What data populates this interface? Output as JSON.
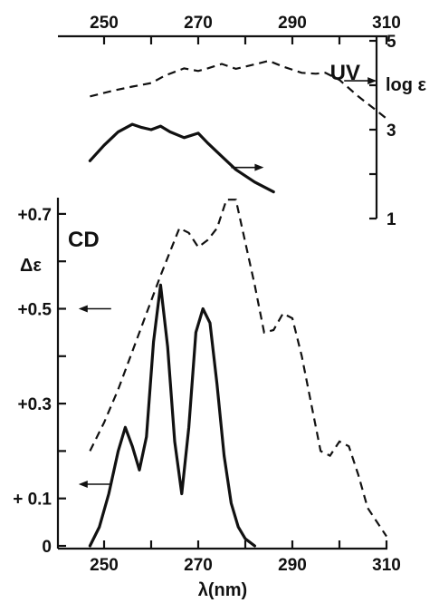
{
  "chart_data": [
    {
      "type": "line",
      "panel": "UV",
      "panel_label": "UV",
      "xlabel": "",
      "ylabel": "log ε",
      "xlim": [
        240,
        310
      ],
      "ylim": [
        1,
        5
      ],
      "x_ticks": [
        250,
        260,
        270,
        280,
        290,
        300,
        310
      ],
      "x_tick_labels": [
        "250",
        "270",
        "290",
        "310"
      ],
      "y_ticks": [
        1,
        2,
        3,
        4,
        5
      ],
      "y_tick_labels": [
        "1",
        "3",
        "5"
      ],
      "grid": false,
      "x_axis_position": "top",
      "y_axis_position": "right",
      "series": [
        {
          "style": "dashed",
          "x": [
            247,
            252,
            256,
            260,
            263,
            267,
            270,
            272,
            275,
            278,
            282,
            285,
            288,
            292,
            295,
            297,
            300,
            304,
            308,
            310
          ],
          "y": [
            3.75,
            3.88,
            3.97,
            4.05,
            4.22,
            4.38,
            4.32,
            4.38,
            4.48,
            4.37,
            4.47,
            4.55,
            4.42,
            4.28,
            4.26,
            4.28,
            4.12,
            3.75,
            3.42,
            3.25
          ]
        },
        {
          "style": "solid",
          "x": [
            247,
            250,
            253,
            256,
            258,
            260,
            262,
            264,
            267,
            270,
            272,
            275,
            278,
            282,
            286
          ],
          "y": [
            2.3,
            2.65,
            2.95,
            3.12,
            3.05,
            3.0,
            3.08,
            2.95,
            2.82,
            2.92,
            2.7,
            2.4,
            2.1,
            1.82,
            1.6
          ]
        }
      ],
      "annotations": [
        {
          "type": "arrow",
          "direction": "right",
          "series": "solid",
          "at_x": 277,
          "at_y": 2.15
        },
        {
          "type": "arrow",
          "direction": "right",
          "series": "dashed",
          "at_x": 301,
          "at_y": 4.1
        }
      ]
    },
    {
      "type": "line",
      "panel": "CD",
      "panel_label": "CD",
      "xlabel": "λ(nm)",
      "ylabel": "Δε",
      "xlim": [
        240,
        310
      ],
      "ylim": [
        0,
        0.75
      ],
      "x_ticks": [
        250,
        260,
        270,
        280,
        290,
        300,
        310
      ],
      "x_tick_labels": [
        "250",
        "270",
        "290",
        "310"
      ],
      "y_ticks": [
        0,
        0.1,
        0.2,
        0.3,
        0.4,
        0.5,
        0.6,
        0.7
      ],
      "y_tick_labels": [
        "0",
        "+ 0.1",
        "+0.3",
        "+0.5",
        "+0.7"
      ],
      "grid": false,
      "series": [
        {
          "style": "dashed",
          "x": [
            247,
            250,
            253,
            256,
            259,
            262,
            264,
            266,
            268,
            270,
            272,
            274,
            276,
            278,
            280,
            282,
            284,
            286,
            288,
            290,
            292,
            294,
            296,
            298,
            300,
            302,
            304,
            306,
            308,
            310
          ],
          "y": [
            0.2,
            0.26,
            0.33,
            0.41,
            0.49,
            0.57,
            0.62,
            0.67,
            0.66,
            0.63,
            0.645,
            0.67,
            0.73,
            0.73,
            0.64,
            0.55,
            0.45,
            0.455,
            0.49,
            0.48,
            0.4,
            0.3,
            0.2,
            0.19,
            0.22,
            0.21,
            0.15,
            0.08,
            0.05,
            0.02
          ]
        },
        {
          "style": "solid",
          "x": [
            247,
            249,
            251,
            253,
            254.5,
            256,
            257.5,
            259,
            260.5,
            262,
            263.5,
            265,
            266.5,
            268,
            269.5,
            271,
            272.5,
            274,
            275.5,
            277,
            278.5,
            280,
            282
          ],
          "y": [
            0,
            0.04,
            0.11,
            0.2,
            0.25,
            0.21,
            0.16,
            0.23,
            0.43,
            0.55,
            0.42,
            0.22,
            0.11,
            0.25,
            0.45,
            0.5,
            0.47,
            0.34,
            0.19,
            0.09,
            0.04,
            0.015,
            0
          ]
        }
      ],
      "annotations": [
        {
          "type": "arrow",
          "direction": "left",
          "series": "dashed",
          "at_x": 251.5,
          "at_y": 0.5
        },
        {
          "type": "arrow",
          "direction": "left",
          "series": "solid",
          "at_x": 251.5,
          "at_y": 0.13
        }
      ]
    }
  ]
}
